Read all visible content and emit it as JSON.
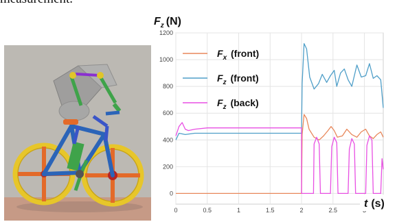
{
  "caption_fragment": "measurement.",
  "figure": {
    "left_image": {
      "description_icon": "bicycle-rider-simulation-model"
    }
  },
  "chart_data": {
    "type": "line",
    "ylabel": "F",
    "ylabel_sub": "z",
    "ylabel_unit": "(N)",
    "xlabel": "t",
    "xlabel_unit": "(s)",
    "xlim": [
      0,
      3.3
    ],
    "ylim": [
      -80,
      1200
    ],
    "x_ticks": [
      0,
      0.5,
      1,
      1.5,
      2,
      2.5,
      3
    ],
    "x_tick_labels": [
      "0",
      "0.5",
      "1",
      "1.5",
      "2",
      "2.5",
      "3"
    ],
    "y_ticks": [
      0,
      200,
      400,
      600,
      800,
      1000,
      1200
    ],
    "y_tick_labels": [
      "0",
      "200",
      "400",
      "600",
      "800",
      "1000",
      "1200"
    ],
    "grid": true,
    "legend_position": "top-left",
    "series": [
      {
        "name": "F_x (front)",
        "name_main": "F",
        "name_sub": "x",
        "name_rest": " (front)",
        "color": "#e8875a",
        "x": [
          0,
          2.0,
          2.01,
          2.04,
          2.08,
          2.12,
          2.2,
          2.28,
          2.35,
          2.42,
          2.47,
          2.52,
          2.57,
          2.65,
          2.72,
          2.8,
          2.88,
          2.95,
          3.02,
          3.08,
          3.14,
          3.2,
          3.26,
          3.3
        ],
        "y": [
          0,
          0,
          440,
          590,
          560,
          480,
          420,
          400,
          430,
          470,
          500,
          470,
          420,
          430,
          480,
          440,
          420,
          460,
          480,
          430,
          410,
          440,
          460,
          420
        ]
      },
      {
        "name": "F_z (front)",
        "name_main": "F",
        "name_sub": "z",
        "name_rest": " (front)",
        "color": "#4e9ec8",
        "x": [
          0,
          0.05,
          0.15,
          0.3,
          0.6,
          1.0,
          1.5,
          2.0,
          2.01,
          2.04,
          2.08,
          2.13,
          2.2,
          2.27,
          2.33,
          2.4,
          2.46,
          2.52,
          2.56,
          2.62,
          2.68,
          2.74,
          2.8,
          2.88,
          2.95,
          3.02,
          3.08,
          3.14,
          3.2,
          3.26,
          3.3
        ],
        "y": [
          400,
          450,
          440,
          450,
          450,
          450,
          450,
          450,
          820,
          1120,
          1080,
          870,
          780,
          820,
          890,
          830,
          880,
          920,
          800,
          900,
          930,
          850,
          800,
          960,
          870,
          880,
          970,
          860,
          880,
          850,
          640
        ]
      },
      {
        "name": "F_z (back)",
        "name_main": "F",
        "name_sub": "z",
        "name_rest": " (back)",
        "color": "#e84fe3",
        "x": [
          0,
          0.05,
          0.1,
          0.15,
          0.2,
          0.3,
          0.5,
          1.0,
          1.5,
          2.0,
          2.0,
          2.01,
          2.1,
          2.19,
          2.2,
          2.24,
          2.28,
          2.3,
          2.38,
          2.46,
          2.48,
          2.52,
          2.56,
          2.58,
          2.66,
          2.74,
          2.76,
          2.8,
          2.84,
          2.86,
          2.94,
          3.02,
          3.04,
          3.08,
          3.12,
          3.14,
          3.22,
          3.26,
          3.28,
          3.3
        ],
        "y": [
          430,
          500,
          530,
          480,
          470,
          480,
          490,
          490,
          490,
          490,
          0,
          0,
          0,
          0,
          370,
          420,
          370,
          0,
          0,
          0,
          350,
          420,
          380,
          0,
          0,
          0,
          330,
          410,
          370,
          0,
          0,
          0,
          360,
          430,
          400,
          0,
          0,
          0,
          260,
          180
        ]
      }
    ]
  }
}
